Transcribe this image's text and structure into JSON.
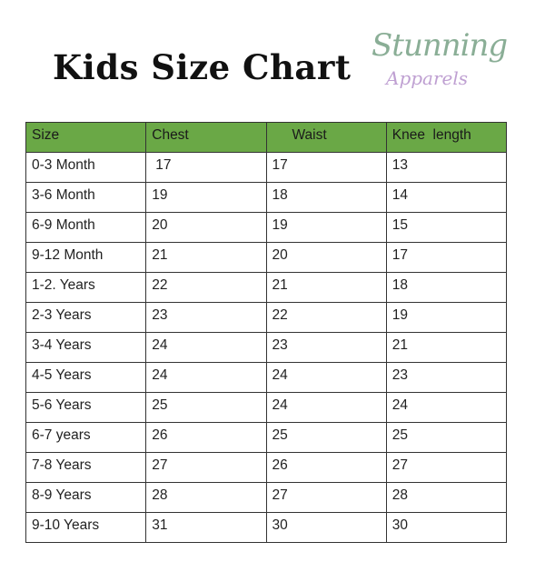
{
  "title": "Kids Size Chart",
  "logo": {
    "line1": "Stunning",
    "line2": "Apparels"
  },
  "colors": {
    "header_bg": "#6aa846",
    "logo_green": "#8aae96",
    "logo_purple": "#bfa0d2"
  },
  "table": {
    "headers": [
      "Size",
      "Chest",
      "Waist",
      "Knee  length"
    ],
    "rows": [
      [
        "0-3 Month",
        "17",
        "17",
        "13"
      ],
      [
        "3-6 Month",
        "19",
        "18",
        "14"
      ],
      [
        "6-9 Month",
        "20",
        "19",
        "15"
      ],
      [
        "9-12 Month",
        "21",
        "20",
        "17"
      ],
      [
        "1-2. Years",
        "22",
        "21",
        "18"
      ],
      [
        "2-3 Years",
        "23",
        "22",
        "19"
      ],
      [
        "3-4 Years",
        "24",
        "23",
        "21"
      ],
      [
        "4-5 Years",
        "24",
        "24",
        "23"
      ],
      [
        "5-6 Years",
        "25",
        "24",
        "24"
      ],
      [
        "6-7 years",
        "26",
        "25",
        "25"
      ],
      [
        "7-8 Years",
        "27",
        "26",
        "27"
      ],
      [
        "8-9 Years",
        "28",
        "27",
        "28"
      ],
      [
        "9-10 Years",
        "31",
        "30",
        "30"
      ]
    ]
  }
}
